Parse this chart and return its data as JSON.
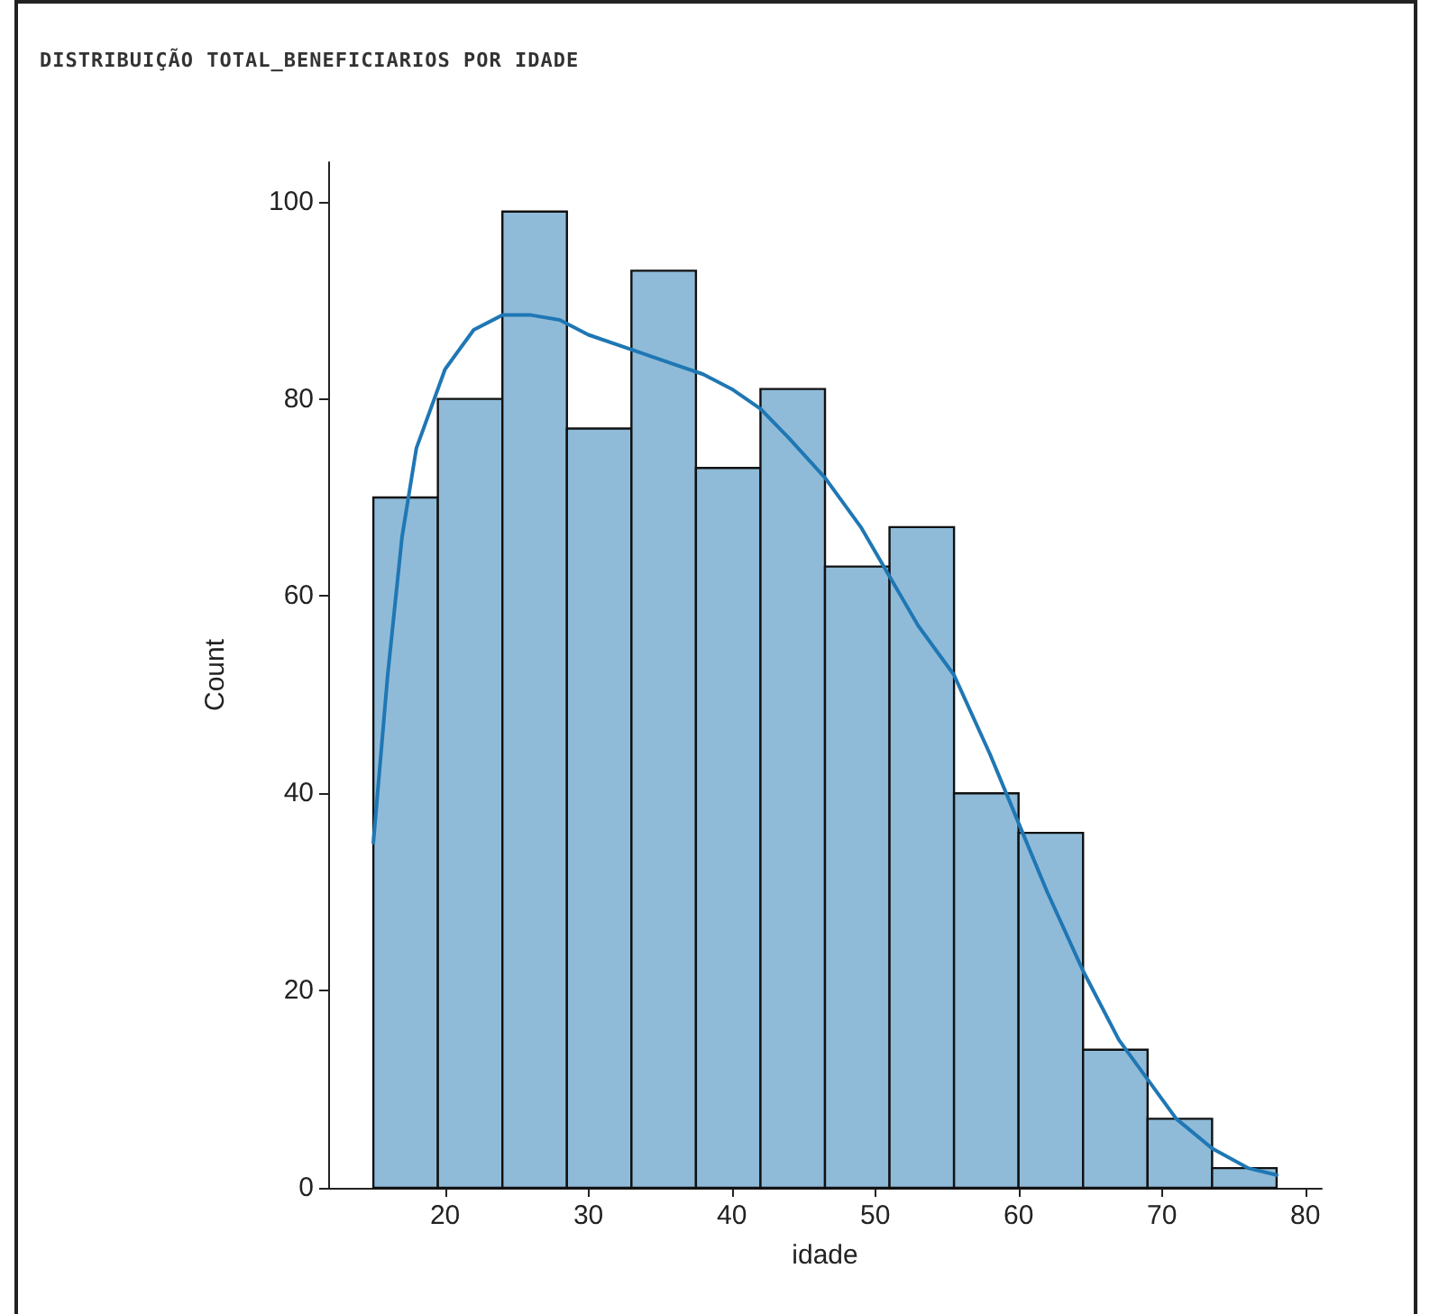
{
  "chart_data": {
    "type": "histogram",
    "title": "DISTRIBUIÇÃO TOTAL_BENEFICIARIOS POR IDADE",
    "xlabel": "idade",
    "ylabel": "Count",
    "series": [
      {
        "type": "histogram",
        "color": "#8fbbd9",
        "bins": [
          15,
          19.5,
          24,
          28.5,
          33,
          37.5,
          42,
          46.5,
          51,
          55.5,
          60,
          64.5,
          69,
          73.5,
          78
        ],
        "values": [
          70,
          80,
          99,
          77,
          93,
          73,
          81,
          63,
          67,
          40,
          36,
          14,
          7,
          2
        ]
      },
      {
        "type": "line",
        "color": "#1f77b4",
        "x": [
          15,
          16,
          17,
          18,
          20,
          22,
          24,
          26,
          28,
          30,
          33,
          36,
          38,
          40,
          42,
          44,
          46.5,
          49,
          51,
          53,
          55.5,
          58,
          60,
          62,
          64.5,
          67,
          69,
          71,
          73.5,
          76,
          78
        ],
        "values": [
          35,
          52,
          66,
          75,
          83,
          87,
          88.5,
          88.5,
          88,
          86.5,
          85,
          83.5,
          82.5,
          81,
          79,
          76,
          72,
          67,
          62,
          57,
          52,
          44,
          37,
          30,
          22,
          15,
          11,
          7,
          4,
          2,
          1.3
        ]
      }
    ],
    "xlim": [
      11.85,
      81.15
    ],
    "xticks": [
      20,
      30,
      40,
      50,
      60,
      70,
      80
    ],
    "ylim": [
      0,
      104
    ],
    "yticks": [
      0,
      20,
      40,
      60,
      80,
      100
    ],
    "grid": false,
    "marker": "none",
    "line_style": "solid"
  }
}
